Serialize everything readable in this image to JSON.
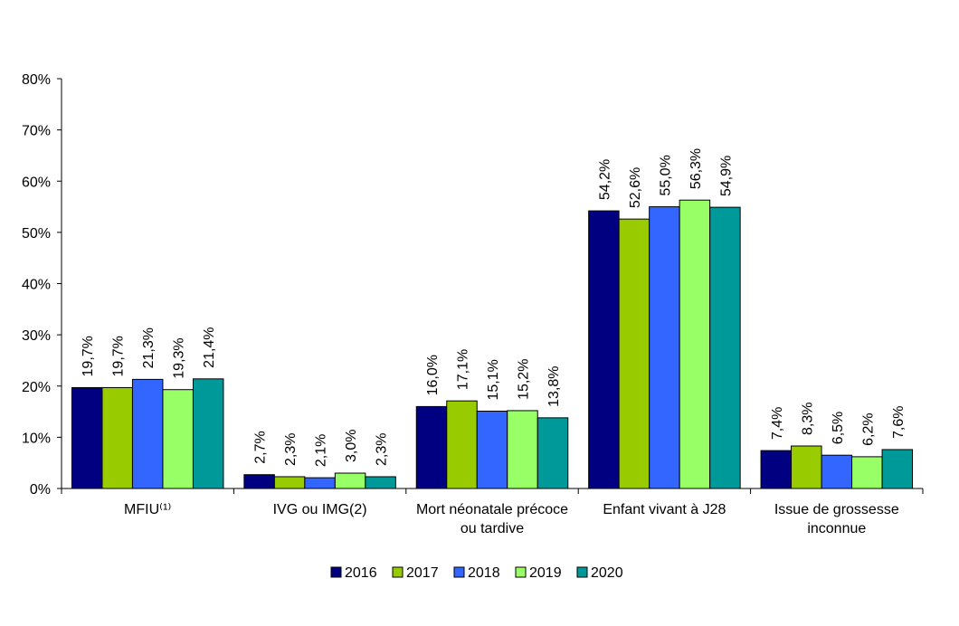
{
  "chart_data": {
    "type": "bar",
    "categories": [
      "MFIU⁽¹⁾",
      "IVG ou IMG(2)",
      "Mort néonatale précoce|ou tardive",
      "Enfant vivant à J28",
      "Issue de grossesse|inconnue"
    ],
    "series": [
      {
        "name": "2016",
        "color": "#000080",
        "values": [
          19.7,
          2.7,
          16.0,
          54.2,
          7.4
        ],
        "labels": [
          "19,7%",
          "2,7%",
          "16,0%",
          "54,2%",
          "7,4%"
        ]
      },
      {
        "name": "2017",
        "color": "#99CC00",
        "values": [
          19.7,
          2.3,
          17.1,
          52.6,
          8.3
        ],
        "labels": [
          "19,7%",
          "2,3%",
          "17,1%",
          "52,6%",
          "8,3%"
        ]
      },
      {
        "name": "2018",
        "color": "#3366FF",
        "values": [
          21.3,
          2.1,
          15.1,
          55.0,
          6.5
        ],
        "labels": [
          "21,3%",
          "2,1%",
          "15,1%",
          "55,0%",
          "6,5%"
        ]
      },
      {
        "name": "2019",
        "color": "#99FF66",
        "values": [
          19.3,
          3.0,
          15.2,
          56.3,
          6.2
        ],
        "labels": [
          "19,3%",
          "3,0%",
          "15,2%",
          "56,3%",
          "6,2%"
        ]
      },
      {
        "name": "2020",
        "color": "#009999",
        "values": [
          21.4,
          2.3,
          13.8,
          54.9,
          7.6
        ],
        "labels": [
          "21,4%",
          "2,3%",
          "13,8%",
          "54,9%",
          "7,6%"
        ]
      }
    ],
    "ylim": [
      0,
      80
    ],
    "yticks": [
      0,
      10,
      20,
      30,
      40,
      50,
      60,
      70,
      80
    ],
    "ytick_labels": [
      "0%",
      "10%",
      "20%",
      "30%",
      "40%",
      "50%",
      "60%",
      "70%",
      "80%"
    ],
    "legend_position": "bottom",
    "grid": false
  }
}
